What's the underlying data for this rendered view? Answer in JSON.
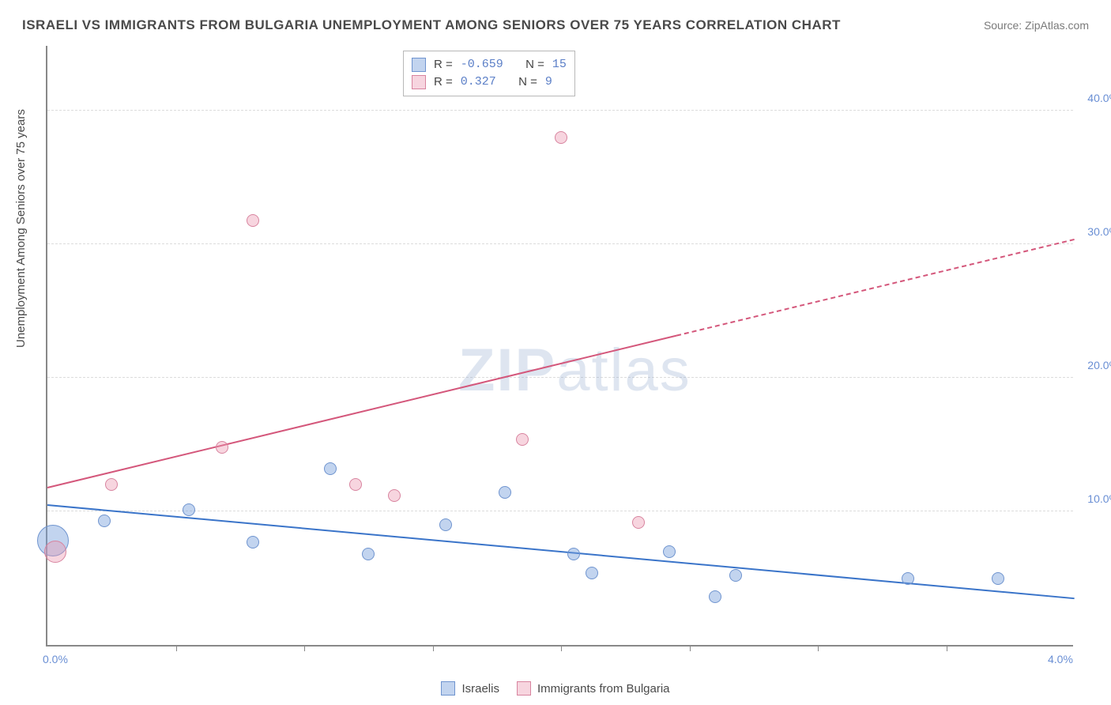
{
  "title": "ISRAELI VS IMMIGRANTS FROM BULGARIA UNEMPLOYMENT AMONG SENIORS OVER 75 YEARS CORRELATION CHART",
  "source": "Source: ZipAtlas.com",
  "yAxisTitle": "Unemployment Among Seniors over 75 years",
  "watermark_a": "ZIP",
  "watermark_b": "atlas",
  "chart": {
    "type": "scatter",
    "xlim": [
      0.0,
      4.0
    ],
    "ylim": [
      0.0,
      45.0
    ],
    "xticks_minor": [
      0.5,
      1.0,
      1.5,
      2.0,
      2.5,
      3.0,
      3.5
    ],
    "xlabels": [
      {
        "v": 0.0,
        "label": "0.0%"
      },
      {
        "v": 4.0,
        "label": "4.0%"
      }
    ],
    "ygrid": [
      10.0,
      20.0,
      30.0,
      40.0
    ],
    "ylabels": [
      {
        "v": 10.0,
        "label": "10.0%"
      },
      {
        "v": 20.0,
        "label": "20.0%"
      },
      {
        "v": 30.0,
        "label": "30.0%"
      },
      {
        "v": 40.0,
        "label": "40.0%"
      }
    ],
    "background_color": "#ffffff",
    "grid_color": "#dcdcdc",
    "axis_color": "#888888",
    "series": [
      {
        "id": "israelis",
        "name": "Israelis",
        "fill": "rgba(120,160,220,0.45)",
        "stroke": "#6f94cf",
        "line_color": "#3a74c9",
        "R": "-0.659",
        "N": "15",
        "points": [
          {
            "x": 0.02,
            "y": 7.8,
            "r": 20
          },
          {
            "x": 0.22,
            "y": 9.3,
            "r": 8
          },
          {
            "x": 0.55,
            "y": 10.1,
            "r": 8
          },
          {
            "x": 0.8,
            "y": 7.7,
            "r": 8
          },
          {
            "x": 1.1,
            "y": 13.2,
            "r": 8
          },
          {
            "x": 1.25,
            "y": 6.8,
            "r": 8
          },
          {
            "x": 1.55,
            "y": 9.0,
            "r": 8
          },
          {
            "x": 1.78,
            "y": 11.4,
            "r": 8
          },
          {
            "x": 2.05,
            "y": 6.8,
            "r": 8
          },
          {
            "x": 2.12,
            "y": 5.4,
            "r": 8
          },
          {
            "x": 2.42,
            "y": 7.0,
            "r": 8
          },
          {
            "x": 2.68,
            "y": 5.2,
            "r": 8
          },
          {
            "x": 2.6,
            "y": 3.6,
            "r": 8
          },
          {
            "x": 3.35,
            "y": 5.0,
            "r": 8
          },
          {
            "x": 3.7,
            "y": 5.0,
            "r": 8
          }
        ],
        "trend": {
          "x1": 0.0,
          "y1": 10.5,
          "x2": 4.0,
          "y2": 3.5,
          "solid_until_x": 4.0
        }
      },
      {
        "id": "bulgaria",
        "name": "Immigrants from Bulgaria",
        "fill": "rgba(235,150,175,0.40)",
        "stroke": "#d8849f",
        "line_color": "#d4577b",
        "R": "0.327",
        "N": "9",
        "points": [
          {
            "x": 0.03,
            "y": 7.0,
            "r": 14
          },
          {
            "x": 0.25,
            "y": 12.0,
            "r": 8
          },
          {
            "x": 0.68,
            "y": 14.8,
            "r": 8
          },
          {
            "x": 0.8,
            "y": 31.8,
            "r": 8
          },
          {
            "x": 1.2,
            "y": 12.0,
            "r": 8
          },
          {
            "x": 1.35,
            "y": 11.2,
            "r": 8
          },
          {
            "x": 1.85,
            "y": 15.4,
            "r": 8
          },
          {
            "x": 2.0,
            "y": 38.0,
            "r": 8
          },
          {
            "x": 2.3,
            "y": 9.2,
            "r": 8
          }
        ],
        "trend": {
          "x1": 0.0,
          "y1": 11.8,
          "x2": 4.0,
          "y2": 30.4,
          "solid_until_x": 2.45
        }
      }
    ],
    "legend_bottom": [
      {
        "name": "Israelis",
        "fill": "rgba(120,160,220,0.45)",
        "stroke": "#6f94cf"
      },
      {
        "name": "Immigrants from Bulgaria",
        "fill": "rgba(235,150,175,0.40)",
        "stroke": "#d8849f"
      }
    ]
  }
}
